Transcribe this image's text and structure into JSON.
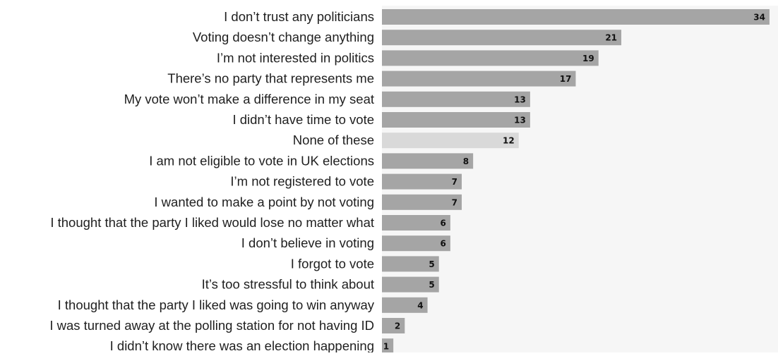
{
  "chart_data": {
    "type": "bar",
    "orientation": "horizontal",
    "categories": [
      "I don’t trust any politicians",
      "Voting doesn’t change anything",
      "I’m not interested in politics",
      "There’s no party that represents me",
      "My vote won’t make a difference in my seat",
      "I didn’t have time to vote",
      "None of these",
      "I am not eligible to vote in UK elections",
      "I’m not registered to vote",
      "I wanted to make a point by not voting",
      "I thought that the party I liked would lose no matter what",
      "I don’t believe in voting",
      "I forgot to vote",
      "It’s too stressful to think about",
      "I thought that the party I liked was going to win anyway",
      "I was turned away at the polling station for not having ID",
      "I didn’t know there was an election happening"
    ],
    "values": [
      34,
      21,
      19,
      17,
      13,
      13,
      12,
      8,
      7,
      7,
      6,
      6,
      5,
      5,
      4,
      2,
      1
    ],
    "highlight_category": "None of these",
    "colors": {
      "bar": "#a5a5a5",
      "bar_highlight": "#d9d9d9",
      "plot_background": "#f6f6f6",
      "label_text": "#1f1f1f",
      "value_text": "#111111"
    },
    "title": "",
    "xlabel": "",
    "ylabel": "",
    "xlim": [
      0,
      34.5
    ],
    "grid": false,
    "legend": "none"
  }
}
